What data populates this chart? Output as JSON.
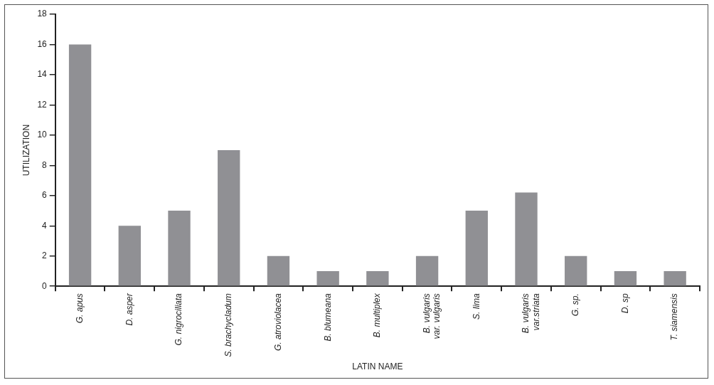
{
  "chart_data": {
    "type": "bar",
    "xlabel": "LATIN NAME",
    "ylabel": "UTILIZATION",
    "categories": [
      "G. apus",
      "D. asper",
      "G. nigrociliata",
      "S. brachycladum",
      "G. atroviolacea",
      "B. blumeana",
      "B. multiplex",
      "B. vulgaris var. vulgaris",
      "S. lima",
      "B. vulgaris var.striata",
      "G. sp.",
      "D. sp",
      "T. siamensis"
    ],
    "values": [
      16,
      4,
      5,
      9,
      2,
      1,
      1,
      2,
      5,
      6.2,
      2,
      1,
      1
    ],
    "color": "#909094",
    "ylim": [
      0,
      18
    ],
    "yticks": [
      0,
      2,
      4,
      6,
      8,
      10,
      12,
      14,
      16,
      18
    ],
    "grid": false,
    "legend": false
  }
}
